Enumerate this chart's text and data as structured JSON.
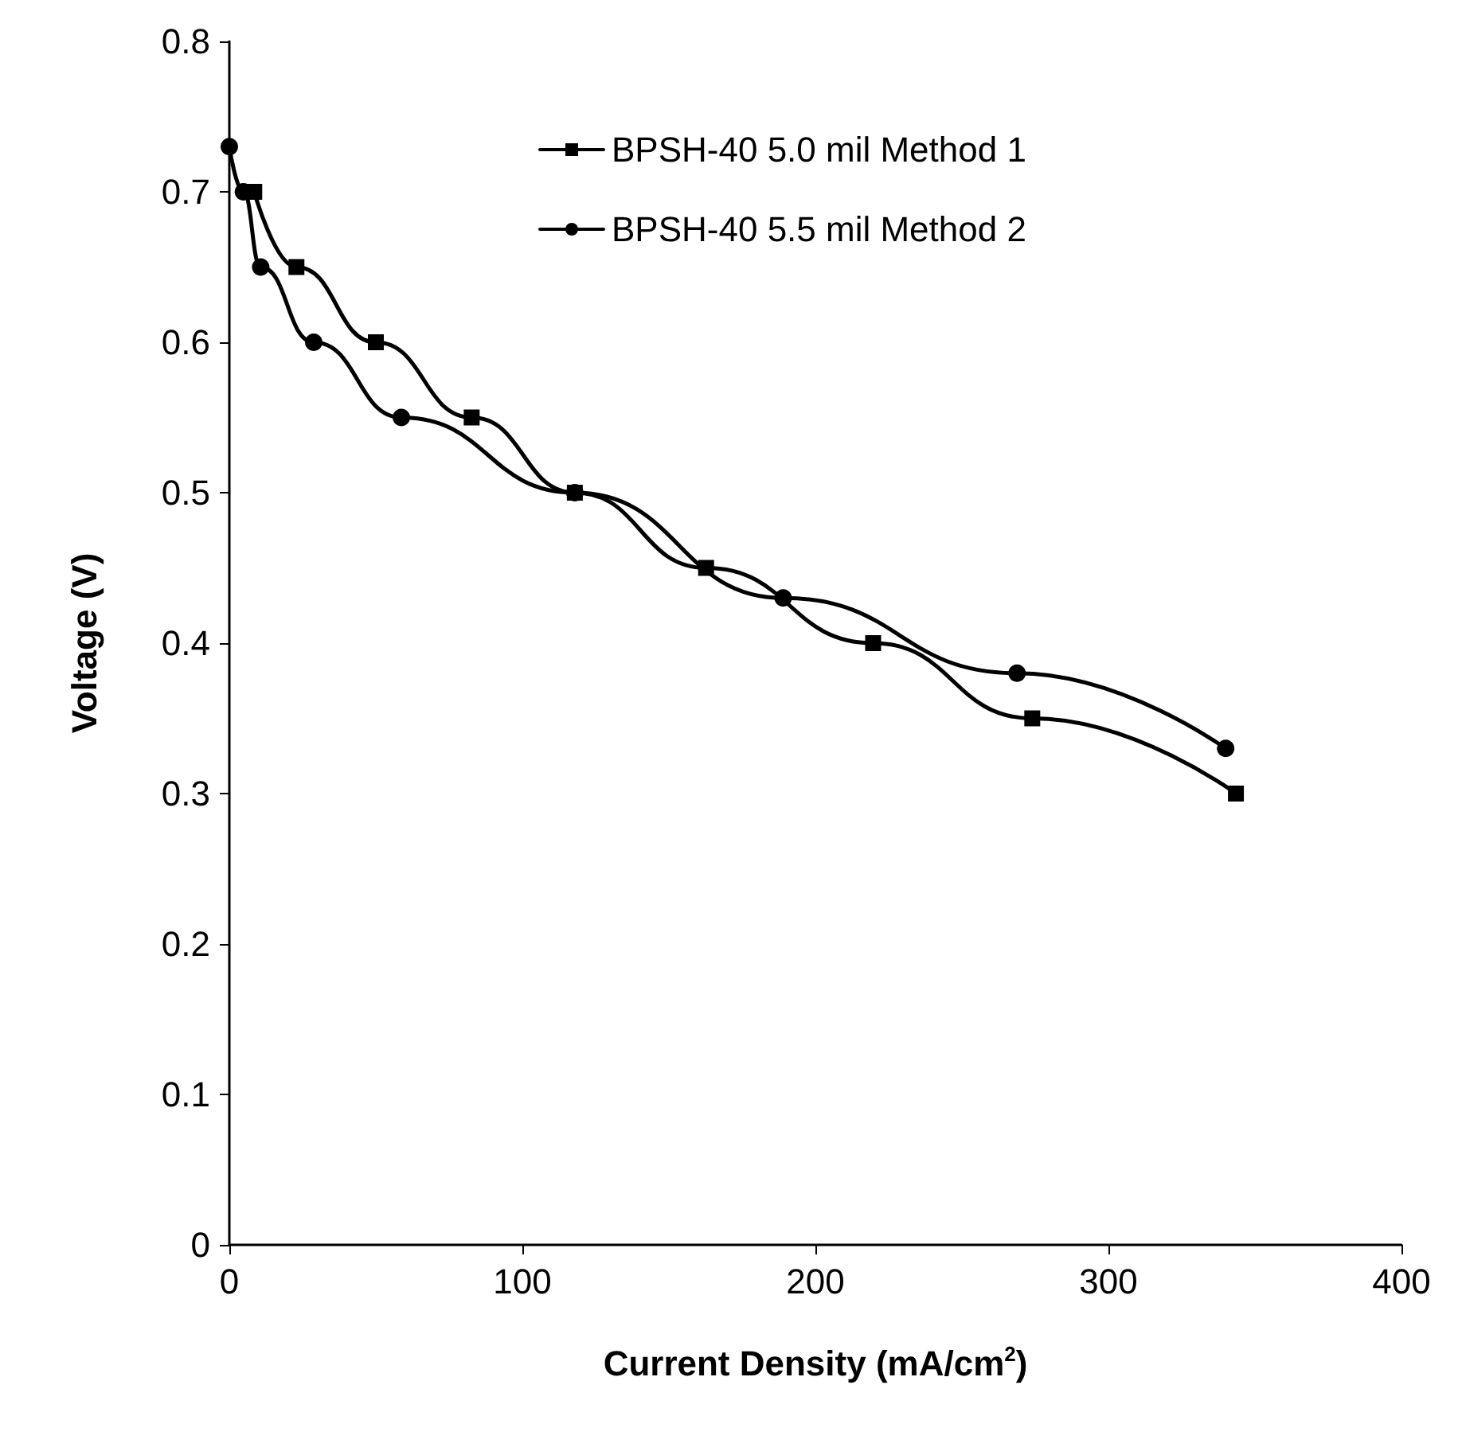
{
  "chart_data": {
    "type": "line",
    "xlabel": "Current Density (mA/cm$^{2}$)",
    "ylabel": "Voltage (V)",
    "xlim": [
      0,
      400
    ],
    "xticks": [
      0,
      100,
      200,
      300,
      400
    ],
    "ylim": [
      0,
      0.8
    ],
    "yticks": [
      0,
      0.1,
      0.2,
      0.3,
      0.4,
      0.5,
      0.6,
      0.7,
      0.8
    ],
    "grid": false,
    "legend": "top right",
    "line_style": "solid",
    "series": [
      {
        "name": "BPSH-40 5.0 mil Method 1",
        "color": "#000000",
        "marker": "square",
        "x": [
          8.5,
          22.9,
          50,
          82.7,
          117.9,
          162.7,
          219.7,
          274,
          343.5
        ],
        "values": [
          0.7,
          0.65,
          0.6,
          0.55,
          0.5,
          0.45,
          0.4,
          0.35,
          0.3
        ]
      },
      {
        "name": "BPSH-40 5.5 mil Method 2",
        "color": "#000000",
        "marker": "circle",
        "x": [
          0,
          4.8,
          10.7,
          28.8,
          58.7,
          117.9,
          189,
          268.8,
          340
        ],
        "values": [
          0.73,
          0.7,
          0.65,
          0.6,
          0.55,
          0.5,
          0.43,
          0.38,
          0.33
        ]
      }
    ]
  }
}
